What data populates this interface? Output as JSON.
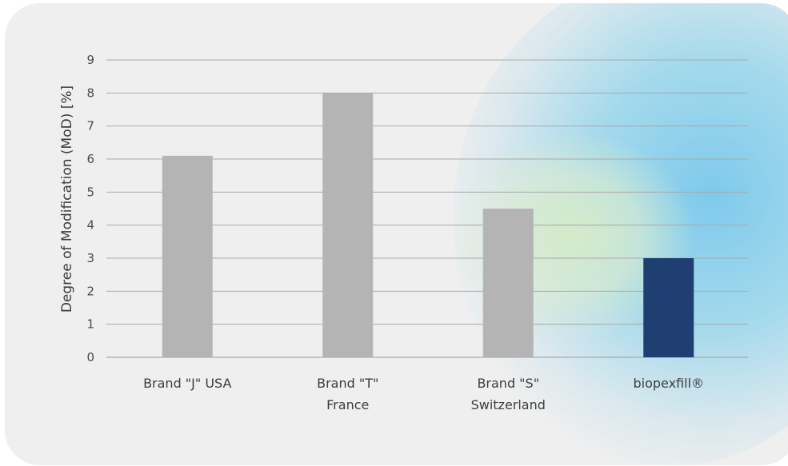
{
  "chart_data": {
    "type": "bar",
    "title": "",
    "xlabel": "",
    "ylabel": "Degree of Modification (MoD) [%]",
    "ylim": [
      0,
      9
    ],
    "yticks": [
      0,
      1,
      2,
      3,
      4,
      5,
      6,
      7,
      8,
      9
    ],
    "grid": true,
    "categories": [
      [
        "Brand \"J\" USA"
      ],
      [
        "Brand \"T\"",
        "France"
      ],
      [
        "Brand \"S\"",
        "Switzerland"
      ],
      [
        "biopexfill®"
      ]
    ],
    "values": [
      6.1,
      8.0,
      4.5,
      3.0
    ],
    "bar_colors": [
      "#b4b4b4",
      "#b4b4b4",
      "#b4b4b4",
      "#1f3f73"
    ],
    "grid_color": "#a9a9a9",
    "background_color": "#efefef"
  }
}
